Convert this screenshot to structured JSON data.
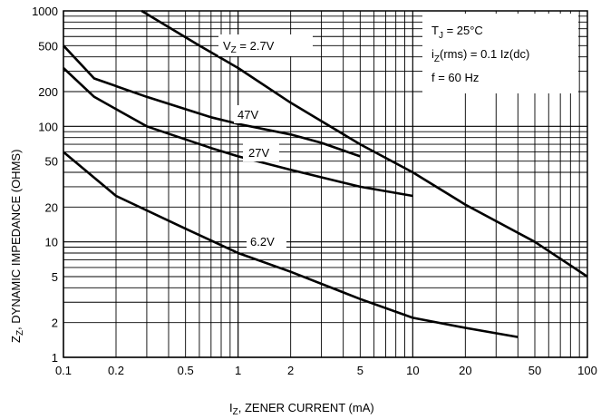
{
  "chart_data": {
    "type": "line",
    "xlabel": {
      "main": "I",
      "sub": "Z",
      "rest": ", ZENER CURRENT (mA)"
    },
    "ylabel": {
      "main": "Z",
      "sub": "Z",
      "rest": ", DYNAMIC IMPEDANCE (OHMS)"
    },
    "x_scale": "log",
    "y_scale": "log",
    "xlim": [
      0.1,
      100
    ],
    "ylim": [
      1,
      1000
    ],
    "grid": true,
    "x_ticks": [
      {
        "v": 0.1,
        "label": "0.1"
      },
      {
        "v": 0.2,
        "label": "0.2"
      },
      {
        "v": 0.5,
        "label": "0.5"
      },
      {
        "v": 1,
        "label": "1"
      },
      {
        "v": 2,
        "label": "2"
      },
      {
        "v": 5,
        "label": "5"
      },
      {
        "v": 10,
        "label": "10"
      },
      {
        "v": 20,
        "label": "20"
      },
      {
        "v": 50,
        "label": "50"
      },
      {
        "v": 100,
        "label": "100"
      }
    ],
    "y_ticks": [
      {
        "v": 1,
        "label": "1"
      },
      {
        "v": 2,
        "label": "2"
      },
      {
        "v": 5,
        "label": "5"
      },
      {
        "v": 10,
        "label": "10"
      },
      {
        "v": 20,
        "label": "20"
      },
      {
        "v": 50,
        "label": "50"
      },
      {
        "v": 100,
        "label": "100"
      },
      {
        "v": 200,
        "label": "200"
      },
      {
        "v": 500,
        "label": "500"
      },
      {
        "v": 1000,
        "label": "1000"
      }
    ],
    "conditions": {
      "line1_main": "T",
      "line1_sub": "J",
      "line1_rest": " = 25°C",
      "line2_main": "i",
      "line2_sub": "Z",
      "line2_rest": "(rms) = 0.1 Iz(dc)",
      "line3": "f = 60 Hz"
    },
    "series": [
      {
        "label_main": "V",
        "label_sub": "Z",
        "label_rest": " = 2.7V",
        "points": [
          [
            0.28,
            1000
          ],
          [
            0.6,
            500
          ],
          [
            1,
            320
          ],
          [
            2,
            160
          ],
          [
            5,
            70
          ],
          [
            10,
            40
          ],
          [
            20,
            21
          ],
          [
            50,
            10
          ],
          [
            100,
            5
          ]
        ]
      },
      {
        "label": "47V",
        "points": [
          [
            0.1,
            500
          ],
          [
            0.15,
            260
          ],
          [
            0.3,
            180
          ],
          [
            0.7,
            120
          ],
          [
            1,
            105
          ],
          [
            2,
            85
          ],
          [
            3,
            72
          ],
          [
            5,
            55
          ]
        ]
      },
      {
        "label": "27V",
        "points": [
          [
            0.1,
            320
          ],
          [
            0.15,
            180
          ],
          [
            0.3,
            100
          ],
          [
            0.7,
            65
          ],
          [
            1,
            55
          ],
          [
            2,
            42
          ],
          [
            5,
            30
          ],
          [
            10,
            25
          ]
        ]
      },
      {
        "label": "6.2V",
        "points": [
          [
            0.1,
            60
          ],
          [
            0.2,
            25
          ],
          [
            0.5,
            13
          ],
          [
            1,
            8
          ],
          [
            2,
            5.5
          ],
          [
            5,
            3.2
          ],
          [
            10,
            2.2
          ],
          [
            20,
            1.8
          ],
          [
            40,
            1.5
          ]
        ]
      }
    ]
  }
}
